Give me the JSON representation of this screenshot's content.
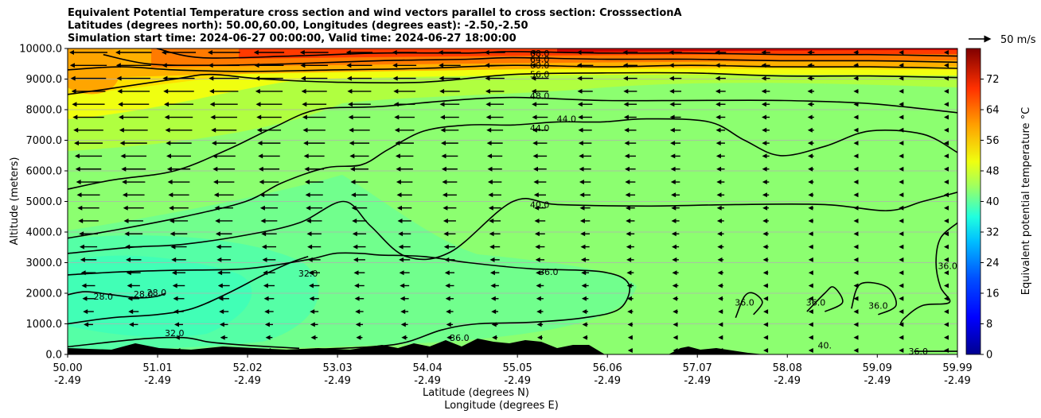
{
  "chart_data": {
    "type": "heatmap",
    "title_lines": [
      "Equivalent Potential Temperature cross section and wind vectors parallel to cross section: CrosssectionA",
      "Latitudes (degrees north): 50.00,60.00, Longitudes (degrees east): -2.50,-2.50",
      "Simulation start time: 2024-06-27 00:00:00, Valid time: 2024-06-27 18:00:00"
    ],
    "ylabel": "Altitude (meters)",
    "xlabel_1": "Latitude (degrees N)",
    "xlabel_2": "Longitude (degrees E)",
    "xlim": [
      50.0,
      59.99
    ],
    "ylim": [
      0,
      10000
    ],
    "x_ticks": [
      {
        "lat": "50.00",
        "lon": "-2.49",
        "value": 50.0
      },
      {
        "lat": "51.01",
        "lon": "-2.49",
        "value": 51.01
      },
      {
        "lat": "52.02",
        "lon": "-2.49",
        "value": 52.02
      },
      {
        "lat": "53.03",
        "lon": "-2.49",
        "value": 53.03
      },
      {
        "lat": "54.04",
        "lon": "-2.49",
        "value": 54.04
      },
      {
        "lat": "55.05",
        "lon": "-2.49",
        "value": 55.05
      },
      {
        "lat": "56.06",
        "lon": "-2.49",
        "value": 56.06
      },
      {
        "lat": "57.07",
        "lon": "-2.49",
        "value": 57.07
      },
      {
        "lat": "58.08",
        "lon": "-2.49",
        "value": 58.08
      },
      {
        "lat": "59.09",
        "lon": "-2.49",
        "value": 59.09
      },
      {
        "lat": "59.99",
        "lon": "-2.49",
        "value": 59.99
      }
    ],
    "y_ticks": [
      {
        "label": "0.0",
        "value": 0
      },
      {
        "label": "1000.0",
        "value": 1000
      },
      {
        "label": "2000.0",
        "value": 2000
      },
      {
        "label": "3000.0",
        "value": 3000
      },
      {
        "label": "4000.0",
        "value": 4000
      },
      {
        "label": "5000.0",
        "value": 5000
      },
      {
        "label": "6000.0",
        "value": 6000
      },
      {
        "label": "7000.0",
        "value": 7000
      },
      {
        "label": "8000.0",
        "value": 8000
      },
      {
        "label": "9000.0",
        "value": 9000
      },
      {
        "label": "10000.0",
        "value": 10000
      }
    ],
    "grid": "horizontal",
    "colorbar": {
      "label": "Equivalent potential temperature $^\\circ$C",
      "label_text": "Equivalent potential temperature °C",
      "range": [
        0,
        80
      ],
      "ticks": [
        "0",
        "8",
        "16",
        "24",
        "32",
        "40",
        "48",
        "56",
        "64",
        "72"
      ],
      "colormap": "jet"
    },
    "quiver_key": {
      "label": "50 m/s",
      "value": 50
    },
    "contours": [
      {
        "level": "28.0",
        "points": [
          [
            50.0,
            1950
          ],
          [
            50.2,
            2050
          ],
          [
            50.5,
            1950
          ],
          [
            50.8,
            1850
          ],
          [
            51.0,
            1900
          ],
          [
            51.1,
            2000
          ]
        ]
      },
      {
        "level": "32.0",
        "points": [
          [
            50.0,
            1000
          ],
          [
            50.5,
            1200
          ],
          [
            51.0,
            1300
          ],
          [
            51.4,
            1500
          ],
          [
            51.8,
            2000
          ],
          [
            52.2,
            2600
          ],
          [
            52.5,
            3000
          ],
          [
            52.7,
            3200
          ]
        ]
      },
      {
        "level": "32.0",
        "points": [
          [
            50.0,
            250
          ],
          [
            50.8,
            500
          ],
          [
            51.3,
            550
          ],
          [
            51.6,
            400
          ],
          [
            52.0,
            300
          ],
          [
            52.6,
            200
          ]
        ]
      },
      {
        "level": "36.0",
        "points": [
          [
            50.0,
            2600
          ],
          [
            50.6,
            2700
          ],
          [
            51.2,
            2750
          ],
          [
            52.0,
            2800
          ],
          [
            52.7,
            3100
          ],
          [
            53.0,
            3300
          ],
          [
            53.3,
            3300
          ],
          [
            53.5,
            3250
          ],
          [
            54.0,
            3200
          ],
          [
            54.5,
            3000
          ],
          [
            55.2,
            2800
          ],
          [
            56.0,
            2700
          ],
          [
            56.3,
            2300
          ],
          [
            56.2,
            1500
          ],
          [
            55.8,
            1200
          ],
          [
            55.2,
            1050
          ],
          [
            54.6,
            1000
          ],
          [
            54.2,
            800
          ],
          [
            53.8,
            400
          ],
          [
            53.4,
            250
          ],
          [
            52.6,
            150
          ]
        ]
      },
      {
        "level": "40.0",
        "points": [
          [
            50.0,
            3300
          ],
          [
            50.7,
            3500
          ],
          [
            51.3,
            3600
          ],
          [
            52.0,
            3900
          ],
          [
            52.6,
            4300
          ],
          [
            53.1,
            5000
          ],
          [
            53.4,
            4200
          ],
          [
            53.8,
            3200
          ],
          [
            54.3,
            3350
          ],
          [
            55.0,
            5000
          ],
          [
            55.5,
            4900
          ],
          [
            56.5,
            4850
          ],
          [
            57.5,
            4900
          ],
          [
            58.5,
            4900
          ],
          [
            59.2,
            4700
          ],
          [
            59.6,
            5000
          ],
          [
            59.99,
            5300
          ]
        ]
      },
      {
        "level": "44.0",
        "points": [
          [
            50.0,
            3800
          ],
          [
            50.6,
            4100
          ],
          [
            51.3,
            4500
          ],
          [
            52.0,
            5000
          ],
          [
            52.4,
            5600
          ],
          [
            52.9,
            6100
          ],
          [
            53.3,
            6200
          ],
          [
            53.6,
            6700
          ],
          [
            54.0,
            7300
          ],
          [
            54.5,
            7500
          ],
          [
            55.0,
            7500
          ],
          [
            55.5,
            7600
          ],
          [
            56.0,
            7600
          ],
          [
            56.5,
            7700
          ],
          [
            57.2,
            7600
          ],
          [
            57.6,
            7000
          ],
          [
            58.0,
            6500
          ],
          [
            58.5,
            6800
          ],
          [
            59.0,
            7300
          ],
          [
            59.6,
            7200
          ],
          [
            59.99,
            6600
          ]
        ]
      },
      {
        "level": "48.0",
        "points": [
          [
            50.0,
            5400
          ],
          [
            50.5,
            5700
          ],
          [
            51.2,
            6000
          ],
          [
            51.8,
            6700
          ],
          [
            52.3,
            7400
          ],
          [
            52.8,
            8000
          ],
          [
            53.5,
            8100
          ],
          [
            54.3,
            8300
          ],
          [
            55.0,
            8400
          ],
          [
            56.0,
            8300
          ],
          [
            57.0,
            8300
          ],
          [
            58.0,
            8300
          ],
          [
            59.0,
            8200
          ],
          [
            59.99,
            7900
          ]
        ]
      },
      {
        "level": "56.0",
        "points": [
          [
            50.0,
            8500
          ],
          [
            50.5,
            8700
          ],
          [
            51.2,
            9000
          ],
          [
            51.6,
            9150
          ],
          [
            52.2,
            9000
          ],
          [
            53.0,
            8900
          ],
          [
            54.0,
            8900
          ],
          [
            55.0,
            9150
          ],
          [
            56.0,
            9200
          ],
          [
            57.0,
            9200
          ],
          [
            58.0,
            9100
          ],
          [
            59.0,
            9100
          ],
          [
            59.99,
            9050
          ]
        ]
      },
      {
        "level": "60.0",
        "points": [
          [
            50.0,
            9300
          ],
          [
            50.6,
            9400
          ],
          [
            51.2,
            9300
          ],
          [
            52.0,
            9250
          ],
          [
            53.0,
            9300
          ],
          [
            54.0,
            9350
          ],
          [
            55.0,
            9450
          ],
          [
            56.0,
            9400
          ],
          [
            57.0,
            9450
          ],
          [
            58.0,
            9400
          ],
          [
            59.0,
            9400
          ],
          [
            59.99,
            9350
          ]
        ]
      },
      {
        "level": "64.0",
        "points": [
          [
            50.4,
            9800
          ],
          [
            50.9,
            9500
          ],
          [
            51.6,
            9450
          ],
          [
            52.5,
            9500
          ],
          [
            53.5,
            9600
          ],
          [
            54.5,
            9650
          ],
          [
            55.0,
            9700
          ],
          [
            56.0,
            9650
          ],
          [
            57.0,
            9650
          ],
          [
            58.0,
            9600
          ],
          [
            59.0,
            9600
          ],
          [
            59.99,
            9550
          ]
        ]
      },
      {
        "level": "68.0",
        "points": [
          [
            51.0,
            10000
          ],
          [
            51.5,
            9700
          ],
          [
            52.5,
            9750
          ],
          [
            53.5,
            9850
          ],
          [
            54.5,
            9850
          ],
          [
            55.0,
            9900
          ],
          [
            56.0,
            9850
          ],
          [
            57.0,
            9850
          ],
          [
            58.0,
            9800
          ],
          [
            59.0,
            9800
          ],
          [
            59.99,
            9750
          ]
        ]
      },
      {
        "level": "36.0",
        "points": [
          [
            57.5,
            1200
          ],
          [
            57.6,
            1900
          ],
          [
            57.7,
            2000
          ],
          [
            57.8,
            1700
          ],
          [
            57.7,
            1300
          ]
        ]
      },
      {
        "level": "36.0",
        "points": [
          [
            58.3,
            1400
          ],
          [
            58.5,
            2000
          ],
          [
            58.6,
            2200
          ],
          [
            58.7,
            1700
          ],
          [
            58.5,
            1400
          ]
        ]
      },
      {
        "level": "36.0",
        "points": [
          [
            58.8,
            1500
          ],
          [
            58.9,
            2300
          ],
          [
            59.2,
            2200
          ],
          [
            59.3,
            1600
          ],
          [
            59.1,
            1300
          ]
        ]
      },
      {
        "level": "36.0",
        "points": [
          [
            59.99,
            4300
          ],
          [
            59.8,
            3800
          ],
          [
            59.75,
            3000
          ],
          [
            59.8,
            2200
          ],
          [
            59.9,
            1700
          ],
          [
            59.6,
            1600
          ],
          [
            59.4,
            1200
          ],
          [
            59.35,
            1000
          ]
        ]
      },
      {
        "level": "36.0",
        "points": [
          [
            59.5,
            100
          ],
          [
            59.8,
            100
          ],
          [
            59.99,
            100
          ]
        ]
      }
    ],
    "contour_labels": [
      {
        "text": "28.0",
        "x": 50.4,
        "y": 1900
      },
      {
        "text": "28.0",
        "x": 50.85,
        "y": 1980
      },
      {
        "text": "28.0",
        "x": 51.0,
        "y": 2030
      },
      {
        "text": "32.0",
        "x": 52.7,
        "y": 2650
      },
      {
        "text": "32.0",
        "x": 51.2,
        "y": 700
      },
      {
        "text": "36.0",
        "x": 55.4,
        "y": 2700
      },
      {
        "text": "36.0",
        "x": 54.4,
        "y": 550
      },
      {
        "text": "40.0",
        "x": 55.3,
        "y": 4900
      },
      {
        "text": "44.0",
        "x": 55.3,
        "y": 7400
      },
      {
        "text": "44.0",
        "x": 55.6,
        "y": 7700
      },
      {
        "text": "48.0",
        "x": 55.3,
        "y": 8450
      },
      {
        "text": "56.0",
        "x": 55.3,
        "y": 9150
      },
      {
        "text": "60.0",
        "x": 55.3,
        "y": 9450
      },
      {
        "text": "64.0",
        "x": 55.3,
        "y": 9650
      },
      {
        "text": "68.0",
        "x": 55.3,
        "y": 9850
      },
      {
        "text": "36.0",
        "x": 57.6,
        "y": 1700
      },
      {
        "text": "36.0",
        "x": 58.4,
        "y": 1700
      },
      {
        "text": "36.0",
        "x": 59.1,
        "y": 1600
      },
      {
        "text": "36.0",
        "x": 59.88,
        "y": 2900
      },
      {
        "text": "40.",
        "x": 58.5,
        "y": 300
      },
      {
        "text": "36.0",
        "x": 59.55,
        "y": 100
      }
    ]
  }
}
